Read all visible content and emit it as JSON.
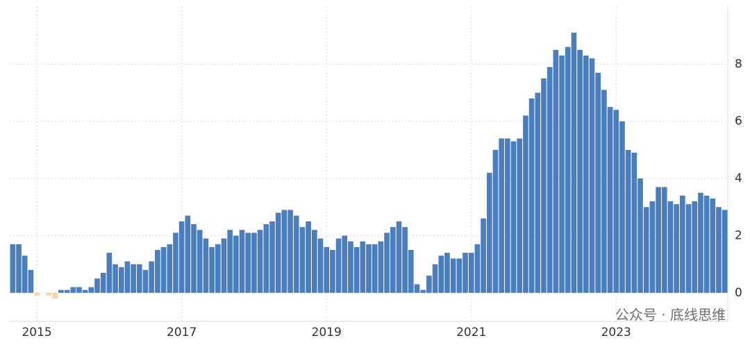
{
  "chart_data": {
    "type": "bar",
    "categories": [
      null,
      null,
      null,
      null,
      "2015",
      null,
      null,
      null,
      null,
      null,
      null,
      null,
      null,
      null,
      null,
      null,
      null,
      null,
      null,
      null,
      null,
      null,
      null,
      null,
      null,
      null,
      null,
      null,
      "2017",
      null,
      null,
      null,
      null,
      null,
      null,
      null,
      null,
      null,
      null,
      null,
      null,
      null,
      null,
      null,
      null,
      null,
      null,
      null,
      null,
      null,
      null,
      null,
      "2019",
      null,
      null,
      null,
      null,
      null,
      null,
      null,
      null,
      null,
      null,
      null,
      null,
      null,
      null,
      null,
      null,
      null,
      null,
      null,
      null,
      null,
      null,
      null,
      "2021",
      null,
      null,
      null,
      null,
      null,
      null,
      null,
      null,
      null,
      null,
      null,
      null,
      null,
      null,
      null,
      null,
      null,
      null,
      null,
      null,
      null,
      null,
      null,
      "2023",
      null,
      null,
      null,
      null,
      null,
      null,
      null,
      null,
      null,
      null,
      null,
      null,
      null,
      null,
      null,
      null,
      null,
      null
    ],
    "values": [
      1.7,
      1.7,
      1.3,
      0.8,
      -0.1,
      0.0,
      -0.1,
      -0.2,
      0.1,
      0.1,
      0.2,
      0.2,
      0.1,
      0.2,
      0.5,
      0.7,
      1.4,
      1.0,
      0.9,
      1.1,
      1.0,
      1.0,
      0.8,
      1.1,
      1.5,
      1.6,
      1.7,
      2.1,
      2.5,
      2.7,
      2.4,
      2.2,
      1.9,
      1.6,
      1.7,
      1.9,
      2.2,
      2.0,
      2.2,
      2.1,
      2.1,
      2.2,
      2.4,
      2.5,
      2.8,
      2.9,
      2.9,
      2.7,
      2.3,
      2.5,
      2.2,
      1.9,
      1.6,
      1.5,
      1.9,
      2.0,
      1.8,
      1.6,
      1.8,
      1.7,
      1.7,
      1.8,
      2.1,
      2.3,
      2.5,
      2.3,
      1.5,
      0.3,
      0.1,
      0.6,
      1.0,
      1.3,
      1.4,
      1.2,
      1.2,
      1.4,
      1.4,
      1.7,
      2.6,
      4.2,
      5.0,
      5.4,
      5.4,
      5.3,
      5.4,
      6.2,
      6.8,
      7.0,
      7.5,
      7.9,
      8.5,
      8.3,
      8.6,
      9.1,
      8.5,
      8.3,
      8.2,
      7.7,
      7.1,
      6.5,
      6.4,
      6.0,
      5.0,
      4.9,
      4.0,
      3.0,
      3.2,
      3.7,
      3.7,
      3.2,
      3.1,
      3.4,
      3.1,
      3.2,
      3.5,
      3.4,
      3.3,
      3.0,
      2.9
    ],
    "color": "#4a7ebf",
    "negative_color": "#f6d7a2",
    "ylim": [
      -1,
      10
    ],
    "yticks": [
      0,
      2,
      4,
      6,
      8
    ],
    "y_axis_side": "right",
    "grid": true,
    "watermark": "公众号 · 底线思维"
  }
}
